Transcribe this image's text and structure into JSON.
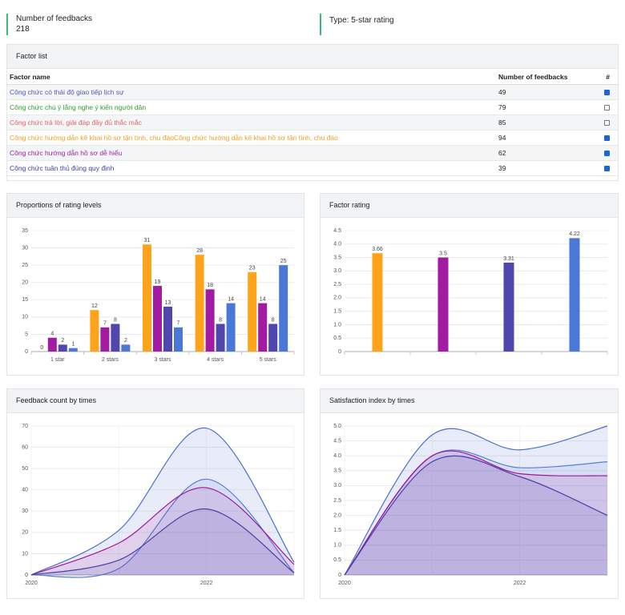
{
  "header": {
    "count_label": "Number of feedbacks",
    "count": 218,
    "type_label": "Type: 5-star rating"
  },
  "table": {
    "title": "Factor list",
    "columns": [
      "Factor name",
      "Number of feedbacks",
      "#"
    ],
    "rows": [
      {
        "name": "Công chức có thái độ giao tiếp lịch sự",
        "count": 49,
        "checked": true,
        "color": "#4e5bb5"
      },
      {
        "name": "Công chức chú ý lắng nghe ý kiến người dân",
        "count": 79,
        "checked": false,
        "color": "#2e9a2e"
      },
      {
        "name": "Công chức trả lời, giải đáp đầy đủ thắc mắc",
        "count": 85,
        "checked": false,
        "color": "#e06464"
      },
      {
        "name": "Công chức hướng dẫn kê khai hồ sơ tận tình, chu đáoCông chức hướng dẫn kê khai hồ sơ tận tình, chu đáo",
        "count": 94,
        "checked": true,
        "color": "#f0a020"
      },
      {
        "name": "Công chức hướng dẫn hồ sơ dễ hiểu",
        "count": 62,
        "checked": true,
        "color": "#9c1fa0"
      },
      {
        "name": "Công chức tuân thủ đúng quy định",
        "count": 39,
        "checked": true,
        "color": "#4040a0"
      }
    ]
  },
  "chart_data": [
    {
      "type": "bar",
      "title": "Proportions of rating levels",
      "categories": [
        "1 star",
        "2 stars",
        "3 stars",
        "4 stars",
        "5 stars"
      ],
      "series": [
        {
          "color": "#ffa31a",
          "values": [
            0,
            12,
            31,
            28,
            23
          ]
        },
        {
          "color": "#a31aa3",
          "values": [
            4,
            7,
            19,
            18,
            14
          ]
        },
        {
          "color": "#4f47ad",
          "values": [
            2,
            8,
            13,
            8,
            8
          ]
        },
        {
          "color": "#4a78d6",
          "values": [
            1,
            2,
            7,
            14,
            25
          ]
        }
      ],
      "ylim": [
        0,
        35
      ],
      "yticks": [
        0,
        5,
        10,
        15,
        20,
        25,
        30,
        35
      ],
      "grid": true
    },
    {
      "type": "bar",
      "title": "Factor rating",
      "categories": [
        null,
        null,
        null,
        null
      ],
      "values": [
        3.66,
        3.5,
        3.31,
        4.22
      ],
      "colors": [
        "#ffa31a",
        "#a31aa3",
        "#4f47ad",
        "#4a78d6"
      ],
      "ylim": [
        0,
        4.5
      ],
      "yticks": [
        0,
        0.5,
        {
          "value": 1,
          "label": "1.0"
        },
        1.5,
        {
          "value": 2,
          "label": "2.0"
        },
        2.5,
        {
          "value": 3,
          "label": "3.0"
        },
        3.5,
        {
          "value": 4,
          "label": "4.0"
        },
        4.5
      ],
      "grid": true
    },
    {
      "type": "line",
      "title": "Feedback count by times",
      "categories": [
        "2020",
        null,
        "2022",
        null
      ],
      "series": [
        {
          "color": "#4a6fd0",
          "values": [
            0,
            21,
            69,
            6
          ]
        },
        {
          "color": "#5580d8",
          "values": [
            0,
            3,
            45,
            1
          ]
        },
        {
          "color": "#a0149c",
          "values": [
            0,
            15,
            41,
            5
          ]
        },
        {
          "color": "#4b3fa8",
          "values": [
            0,
            7,
            31,
            1
          ]
        }
      ],
      "ylim": [
        0,
        70
      ],
      "yticks": [
        0,
        10,
        20,
        30,
        40,
        50,
        60,
        70
      ],
      "grid": true
    },
    {
      "type": "line",
      "title": "Satisfaction index by times",
      "categories": [
        "2020",
        null,
        "2022",
        null
      ],
      "series": [
        {
          "color": "#4a6fd0",
          "values": [
            0,
            4.7,
            4.2,
            5.0
          ]
        },
        {
          "color": "#5580d8",
          "values": [
            0,
            4.0,
            3.6,
            3.8
          ]
        },
        {
          "color": "#a0149c",
          "values": [
            0,
            4.0,
            3.4,
            3.33
          ]
        },
        {
          "color": "#4b3fa8",
          "values": [
            0,
            3.8,
            3.3,
            2.0
          ]
        }
      ],
      "ylim": [
        0,
        5
      ],
      "yticks": [
        0,
        0.5,
        {
          "value": 1,
          "label": "1.0"
        },
        1.5,
        {
          "value": 2,
          "label": "2.0"
        },
        2.5,
        {
          "value": 3,
          "label": "3.0"
        },
        3.5,
        {
          "value": 4,
          "label": "4.0"
        },
        4.5,
        {
          "value": 5,
          "label": "5.0"
        }
      ],
      "grid": true
    }
  ]
}
